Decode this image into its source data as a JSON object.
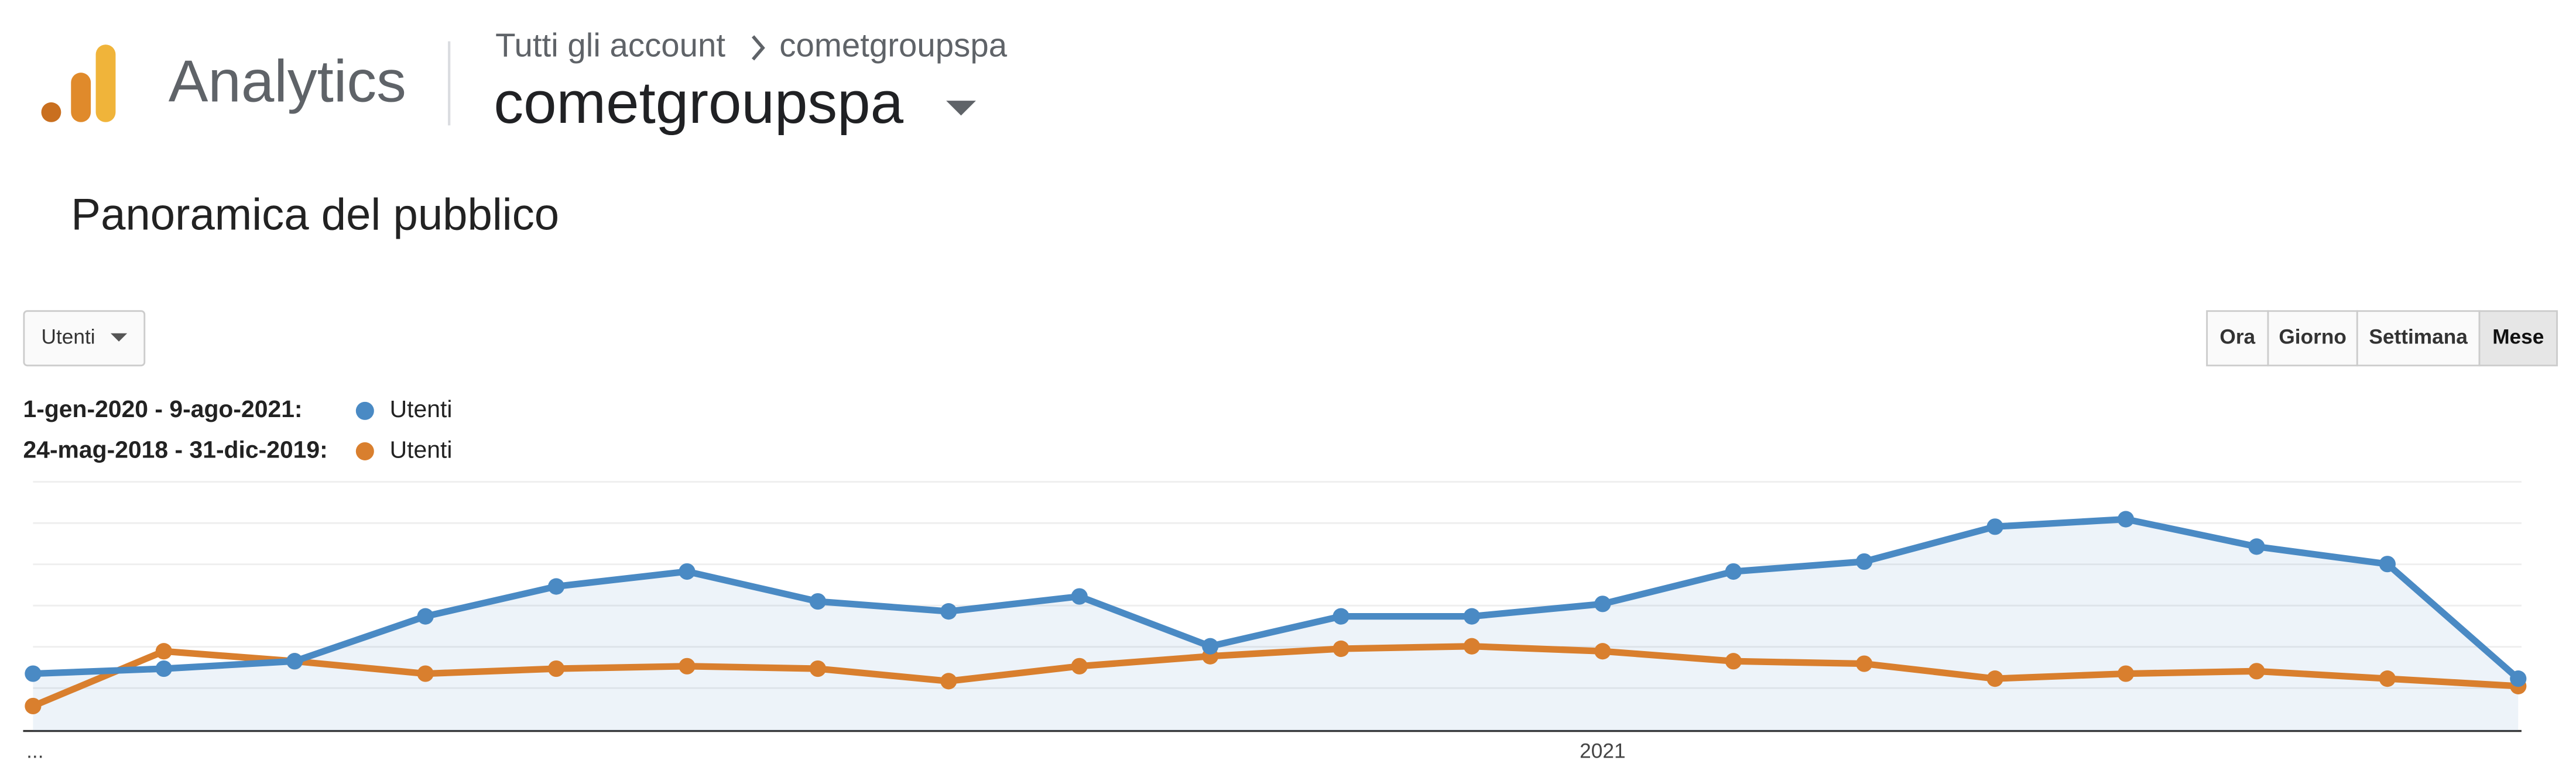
{
  "header": {
    "product": "Analytics",
    "breadcrumb": [
      "Tutti gli account",
      "cometgroupspa"
    ],
    "property": "cometgroupspa"
  },
  "page_title": "Panoramica del pubblico",
  "controls": {
    "metric": "Utenti",
    "granularity": [
      "Ora",
      "Giorno",
      "Settimana",
      "Mese"
    ],
    "active": "Mese"
  },
  "chart_data": {
    "type": "line",
    "categories": [
      "...",
      null,
      null,
      null,
      null,
      null,
      null,
      null,
      null,
      null,
      null,
      null,
      "2021",
      null,
      null,
      null,
      null,
      null,
      null,
      null
    ],
    "series": [
      {
        "period": "1-gen-2020 - 9-ago-2021:",
        "name": "Utenti",
        "color": "#4a8ac4",
        "area": true,
        "values": [
          23,
          25,
          28,
          46,
          58,
          64,
          52,
          48,
          54,
          34,
          46,
          46,
          51,
          64,
          68,
          82,
          85,
          74,
          67,
          21
        ]
      },
      {
        "period": "24-mag-2018 - 31-dic-2019:",
        "name": "Utenti",
        "color": "#d97f2e",
        "area": false,
        "values": [
          10,
          32,
          28,
          23,
          25,
          26,
          25,
          20,
          26,
          30,
          33,
          34,
          32,
          28,
          27,
          21,
          23,
          24,
          21,
          18
        ]
      }
    ],
    "ylim": [
      0,
      100
    ],
    "grid": true
  }
}
